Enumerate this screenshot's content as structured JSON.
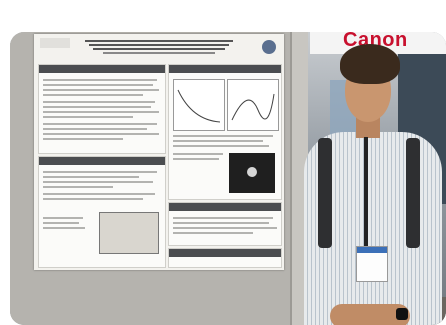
{
  "scene": {
    "booth_brand_text": "Canon"
  },
  "colors": {
    "brand_red": "#c8102e",
    "poster_paper": "#f3f2ee",
    "section_header": "#4b4d50",
    "board_gray": "#b5b3ae"
  }
}
